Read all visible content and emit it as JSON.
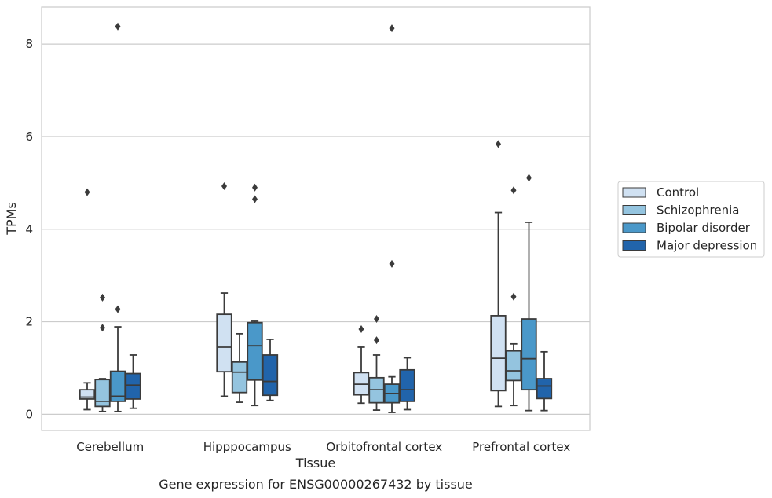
{
  "caption": "Gene expression for ENSG00000267432 by tissue",
  "chart_data": {
    "type": "boxplot",
    "xlabel": "Tissue",
    "ylabel": "TPMs",
    "ylim": [
      -0.35,
      8.8
    ],
    "yticks": [
      0,
      2,
      4,
      6,
      8
    ],
    "grid": true,
    "legend_position": "right",
    "categories": [
      "Cerebellum",
      "Hipppocampus",
      "Orbitofrontal cortex",
      "Prefrontal cortex"
    ],
    "series": [
      {
        "name": "Control",
        "color": "#d0e1f2",
        "boxes": [
          {
            "whislo": 0.1,
            "q1": 0.33,
            "med": 0.37,
            "q3": 0.53,
            "whishi": 0.68,
            "fliers": [
              4.8
            ]
          },
          {
            "whislo": 0.39,
            "q1": 0.92,
            "med": 1.45,
            "q3": 2.16,
            "whishi": 2.62,
            "fliers": [
              4.93
            ]
          },
          {
            "whislo": 0.24,
            "q1": 0.42,
            "med": 0.65,
            "q3": 0.9,
            "whishi": 1.45,
            "fliers": [
              1.84
            ]
          },
          {
            "whislo": 0.17,
            "q1": 0.51,
            "med": 1.21,
            "q3": 2.13,
            "whishi": 4.36,
            "fliers": [
              5.84
            ]
          }
        ]
      },
      {
        "name": "Schizophrenia",
        "color": "#94c4df",
        "boxes": [
          {
            "whislo": 0.06,
            "q1": 0.17,
            "med": 0.28,
            "q3": 0.75,
            "whishi": 0.77,
            "fliers": [
              1.87,
              2.52
            ]
          },
          {
            "whislo": 0.26,
            "q1": 0.47,
            "med": 0.91,
            "q3": 1.13,
            "whishi": 1.74,
            "fliers": []
          },
          {
            "whislo": 0.09,
            "q1": 0.25,
            "med": 0.53,
            "q3": 0.79,
            "whishi": 1.28,
            "fliers": [
              1.6,
              2.06
            ]
          },
          {
            "whislo": 0.19,
            "q1": 0.73,
            "med": 0.94,
            "q3": 1.37,
            "whishi": 1.52,
            "fliers": [
              2.54,
              4.84
            ]
          }
        ]
      },
      {
        "name": "Bipolar disorder",
        "color": "#4a98c9",
        "boxes": [
          {
            "whislo": 0.06,
            "q1": 0.28,
            "med": 0.39,
            "q3": 0.93,
            "whishi": 1.89,
            "fliers": [
              2.27,
              8.38
            ]
          },
          {
            "whislo": 0.19,
            "q1": 0.74,
            "med": 1.48,
            "q3": 1.98,
            "whishi": 2.01,
            "fliers": [
              4.65,
              4.9
            ]
          },
          {
            "whislo": 0.04,
            "q1": 0.25,
            "med": 0.45,
            "q3": 0.65,
            "whishi": 0.81,
            "fliers": [
              3.25,
              8.34
            ]
          },
          {
            "whislo": 0.08,
            "q1": 0.53,
            "med": 1.2,
            "q3": 2.06,
            "whishi": 4.15,
            "fliers": [
              5.11
            ]
          }
        ]
      },
      {
        "name": "Major depression",
        "color": "#2164ab",
        "boxes": [
          {
            "whislo": 0.13,
            "q1": 0.33,
            "med": 0.63,
            "q3": 0.88,
            "whishi": 1.28,
            "fliers": []
          },
          {
            "whislo": 0.3,
            "q1": 0.41,
            "med": 0.71,
            "q3": 1.28,
            "whishi": 1.62,
            "fliers": []
          },
          {
            "whislo": 0.1,
            "q1": 0.28,
            "med": 0.53,
            "q3": 0.96,
            "whishi": 1.22,
            "fliers": []
          },
          {
            "whislo": 0.08,
            "q1": 0.34,
            "med": 0.61,
            "q3": 0.77,
            "whishi": 1.35,
            "fliers": []
          }
        ]
      }
    ]
  }
}
